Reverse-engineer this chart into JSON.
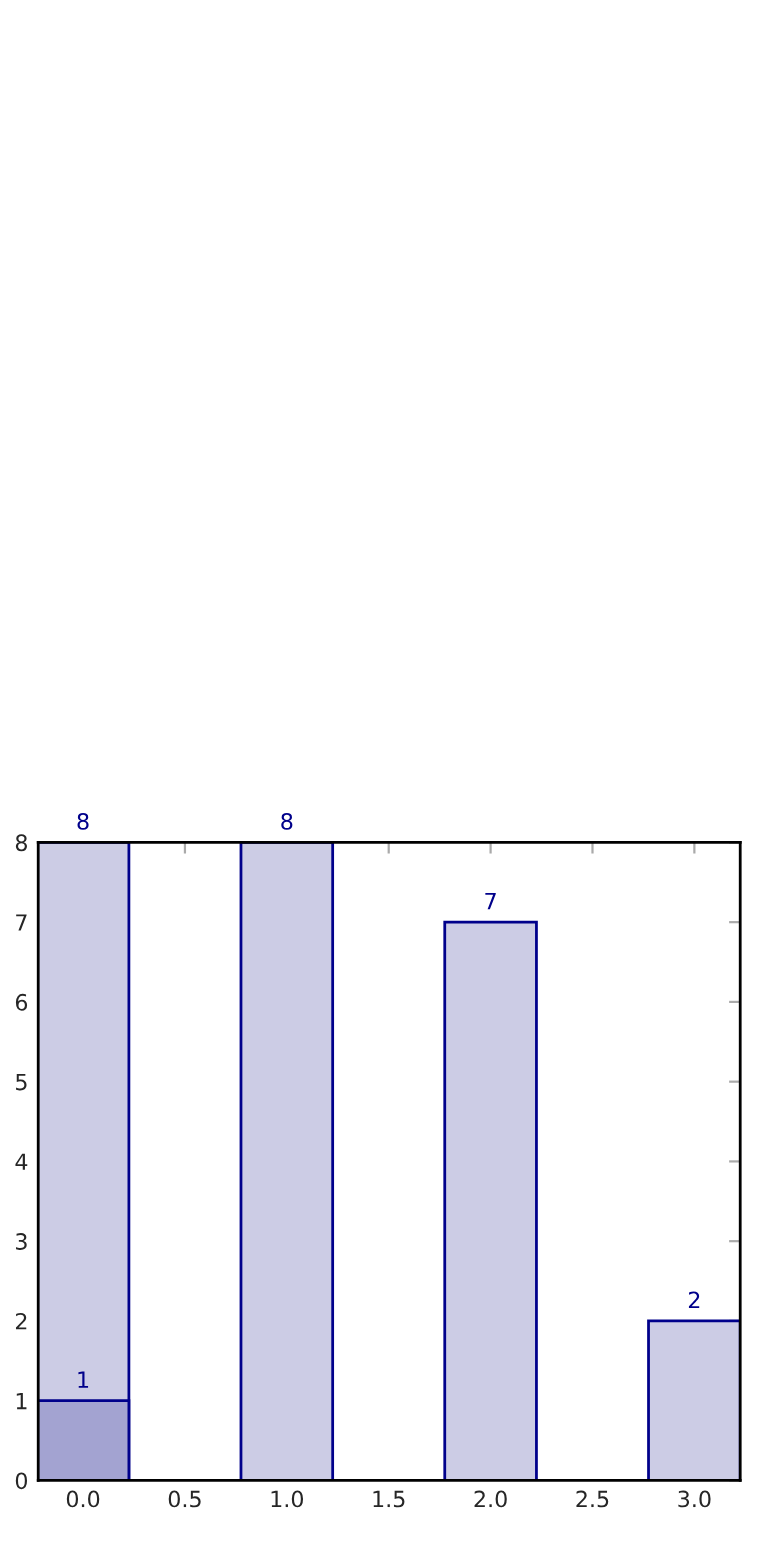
{
  "chart_data": {
    "type": "bar",
    "series": [
      {
        "color": "#ccccE5",
        "x": [
          0,
          1,
          2,
          3
        ],
        "values": [
          8,
          8,
          7,
          2
        ]
      },
      {
        "color": "#a3a3d1",
        "x": [
          0
        ],
        "values": [
          1
        ]
      }
    ],
    "xlim": [
      -0.22,
      3.225
    ],
    "ylim": [
      0,
      8
    ],
    "xticks": [
      {
        "value": 0,
        "label": "0.0"
      },
      {
        "value": 0.5,
        "label": "0.5"
      },
      {
        "value": 1,
        "label": "1.0"
      },
      {
        "value": 1.5,
        "label": "1.5"
      },
      {
        "value": 2,
        "label": "2.0"
      },
      {
        "value": 2.5,
        "label": "2.5"
      },
      {
        "value": 3,
        "label": "3.0"
      }
    ],
    "yticks": [
      0,
      1,
      2,
      3,
      4,
      5,
      6,
      7,
      8
    ],
    "data_labels": true,
    "grid": false,
    "legend": false
  }
}
